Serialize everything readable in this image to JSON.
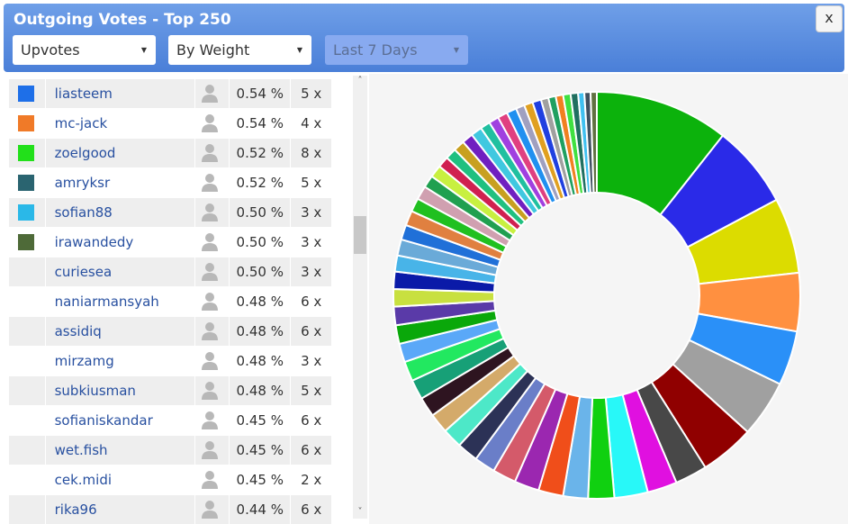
{
  "header": {
    "title": "Outgoing Votes - Top 250",
    "close": "x",
    "filters": [
      "Upvotes",
      "By Weight",
      "Last 7 Days"
    ]
  },
  "table": {
    "rows": [
      [
        "liasteem",
        "0.54 %",
        "5 x"
      ],
      [
        "mc-jack",
        "0.54 %",
        "4 x"
      ],
      [
        "zoelgood",
        "0.52 %",
        "8 x"
      ],
      [
        "amryksr",
        "0.52 %",
        "5 x"
      ],
      [
        "sofian88",
        "0.50 %",
        "3 x"
      ],
      [
        "irawandedy",
        "0.50 %",
        "3 x"
      ],
      [
        "curiesea",
        "0.50 %",
        "3 x"
      ],
      [
        "naniarmansyah",
        "0.48 %",
        "6 x"
      ],
      [
        "assidiq",
        "0.48 %",
        "6 x"
      ],
      [
        "mirzamg",
        "0.48 %",
        "3 x"
      ],
      [
        "subkiusman",
        "0.48 %",
        "5 x"
      ],
      [
        "sofianiskandar",
        "0.45 %",
        "6 x"
      ],
      [
        "wet.fish",
        "0.45 %",
        "6 x"
      ],
      [
        "cek.midi",
        "0.45 %",
        "2 x"
      ],
      [
        "rika96",
        "0.44 %",
        "6 x"
      ]
    ],
    "swatches": [
      "#1e6fe8",
      "#f07a28",
      "#22e01a",
      "#2a6470",
      "#2ab8e8",
      "#4e6a38"
    ]
  },
  "chart_data": {
    "type": "pie",
    "donut": true,
    "values": [
      10.8,
      6.7,
      6.1,
      4.7,
      4.4,
      4.6,
      4.4,
      2.6,
      2.4,
      2.7,
      2.1,
      2.0,
      2.0,
      2.0,
      1.9,
      1.7,
      1.7,
      1.6,
      1.6,
      1.6,
      1.6,
      1.6,
      1.5,
      1.5,
      1.5,
      1.4,
      1.4,
      1.3,
      1.3,
      1.2,
      1.2,
      1.1,
      1.1,
      1.0,
      1.0,
      0.9,
      0.9,
      0.9,
      0.9,
      0.9,
      0.8,
      0.8,
      0.8,
      0.8,
      0.7,
      0.7,
      0.7,
      0.6,
      0.6,
      0.6,
      0.6,
      0.6,
      0.5,
      0.5,
      0.5
    ],
    "colors": [
      "#0cb20c",
      "#2a2ae8",
      "#dcdc00",
      "#ff9040",
      "#2a90f8",
      "#a0a0a0",
      "#900000",
      "#484848",
      "#e010e0",
      "#28f8f8",
      "#10d010",
      "#6ab4ea",
      "#f04e1a",
      "#9b27b0",
      "#d45a6a",
      "#6a7ec8",
      "#2c3256",
      "#4de8c8",
      "#d4aa6a",
      "#2e1420",
      "#17a077",
      "#22e860",
      "#5aa8f8",
      "#0aa80a",
      "#5a3aa8",
      "#c8e040",
      "#0a1aa8",
      "#48b4e8",
      "#6aaad8",
      "#2070d8",
      "#e08040",
      "#20c020",
      "#d0a0b0",
      "#20a050",
      "#c8f040",
      "#d02050",
      "#20c080",
      "#c8a020",
      "#7020c0",
      "#40c8e0",
      "#20c0a0",
      "#a040e0",
      "#e04080",
      "#2090f0",
      "#a0a0c0",
      "#e0a020",
      "#2040e0",
      "#a0a0a0",
      "#20a060",
      "#f08020",
      "#40e040",
      "#207060",
      "#40c0f0",
      "#405060",
      "#607040"
    ]
  }
}
